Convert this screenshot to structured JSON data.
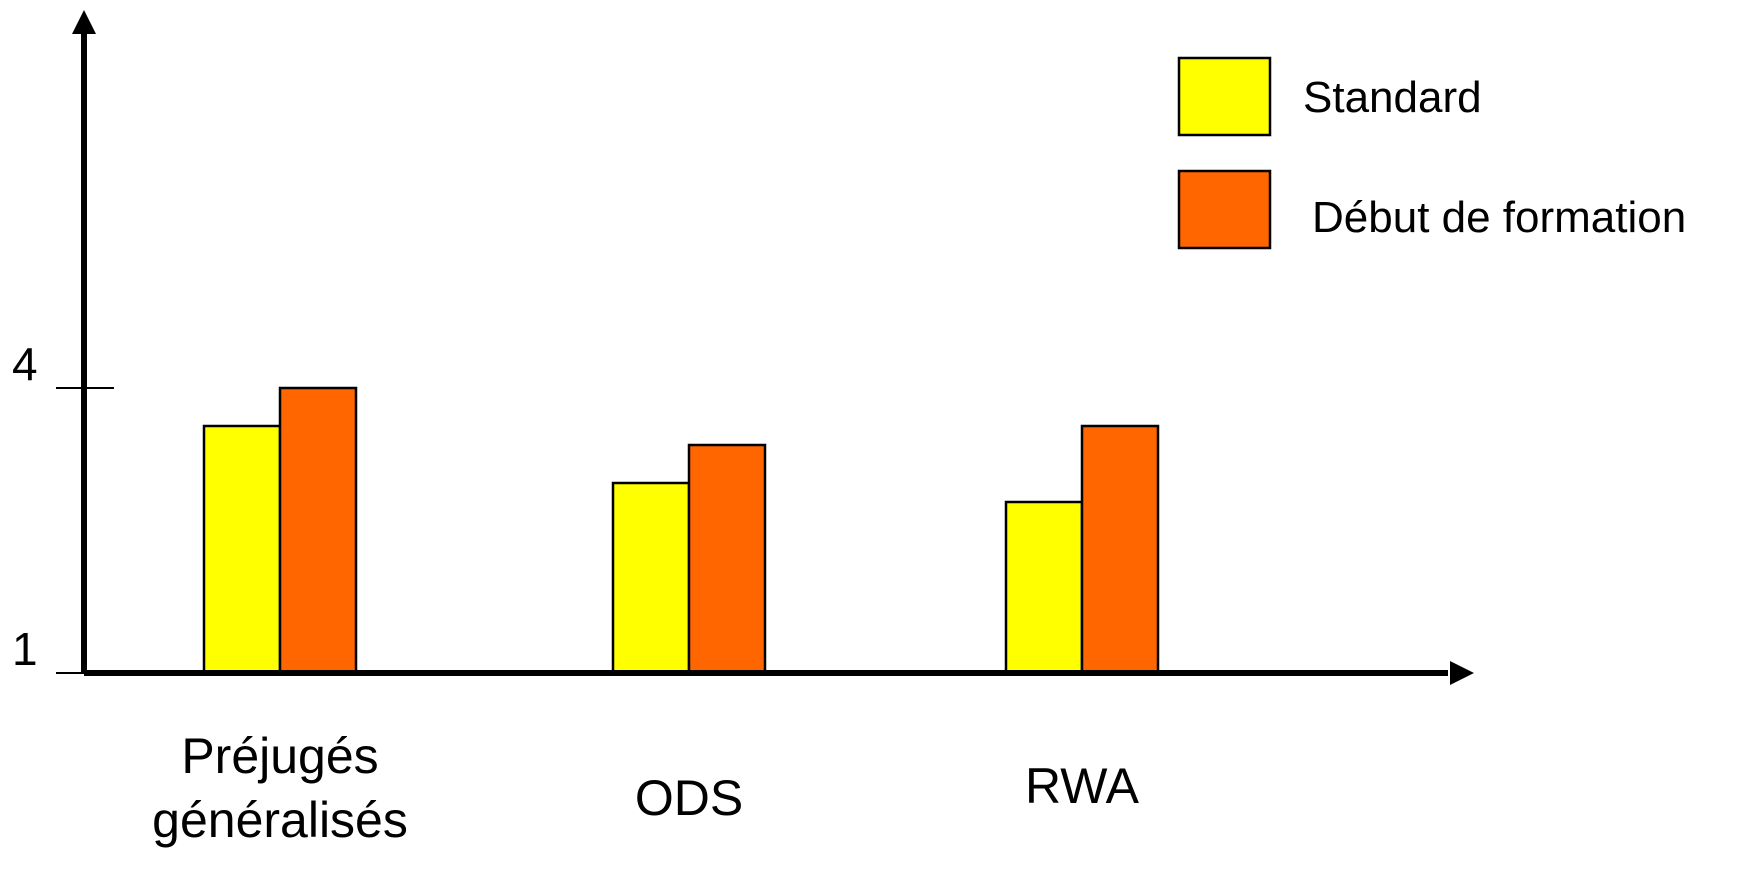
{
  "chart_data": {
    "type": "bar",
    "categories": [
      [
        "Préjugés",
        "généralisés"
      ],
      [
        "ODS"
      ],
      [
        "RWA"
      ]
    ],
    "series": [
      {
        "name": "Standard",
        "color": "#FFFF00",
        "values": [
          3.6,
          3.0,
          2.8
        ]
      },
      {
        "name": "Début de formation",
        "color": "#FF6600",
        "values": [
          4.0,
          3.4,
          3.6
        ]
      }
    ],
    "yticks": [
      {
        "value": 1,
        "label": "1"
      },
      {
        "value": 4,
        "label": "4"
      }
    ],
    "ylim": [
      1,
      8
    ],
    "title": "",
    "xlabel": "",
    "ylabel": "",
    "legend_position": "top-right",
    "grid": false
  }
}
